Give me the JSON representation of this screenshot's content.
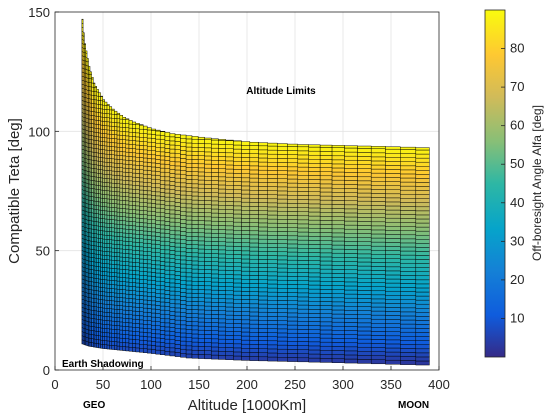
{
  "chart_data": {
    "type": "heatmap",
    "title": "",
    "xlabel": "Altitude [1000Km]",
    "ylabel": "Compatible Teta [deg]",
    "xlim": [
      0,
      400
    ],
    "ylim": [
      0,
      150
    ],
    "x_ticks": [
      0,
      50,
      100,
      150,
      200,
      250,
      300,
      350,
      400
    ],
    "y_ticks": [
      0,
      50,
      100,
      150
    ],
    "grid": true,
    "colormap": "parula",
    "colorbar": {
      "label": "Off-boresight Angle Alfa [deg]",
      "range": [
        0,
        90
      ],
      "ticks": [
        10,
        20,
        30,
        40,
        50,
        60,
        70,
        80
      ]
    },
    "upper_limit_curve": {
      "altitude": [
        28,
        30,
        35,
        40,
        50,
        60,
        70,
        80,
        100,
        120,
        140,
        160,
        200,
        250,
        300,
        350,
        390
      ],
      "teta": [
        147,
        138,
        127,
        120,
        113,
        109,
        106,
        104,
        101,
        99,
        98,
        97,
        95.5,
        94.5,
        94,
        93.5,
        93
      ]
    },
    "lower_limit_curve": {
      "altitude": [
        28,
        35,
        50,
        100,
        140,
        200,
        300,
        390
      ],
      "teta": [
        11,
        10,
        9,
        7,
        5,
        4,
        3,
        2
      ]
    },
    "annotations": {
      "top": "Altitude Limits",
      "bottom": "Earth Shadowing",
      "x_left": "GEO",
      "x_right": "MOON"
    }
  }
}
